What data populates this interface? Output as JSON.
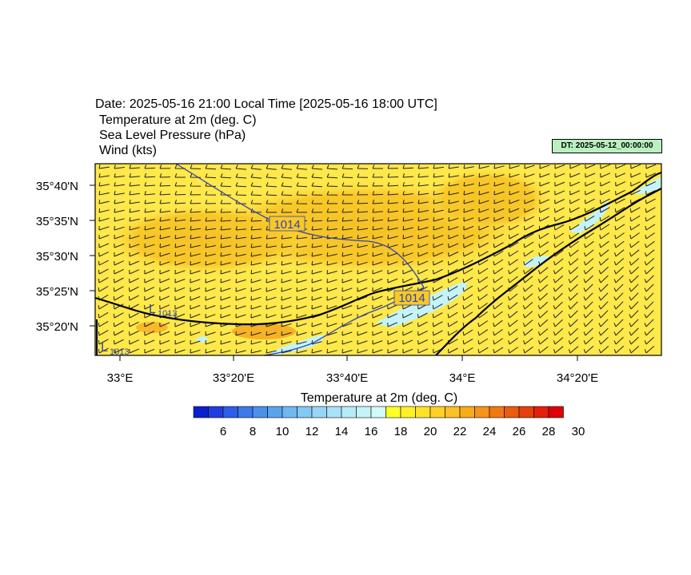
{
  "header": {
    "date_line": "Date: 2025-05-16  21:00 Local Time [2025-05-16  18:00 UTC]",
    "fields": [
      "Temperature at 2m   (deg. C)",
      "Sea Level Pressure   (hPa)",
      "Wind   (kts)"
    ],
    "dt_badge": "DT: 2025-05-12_00:00:00"
  },
  "map": {
    "lat_labels": [
      "35°40'N",
      "35°35'N",
      "35°30'N",
      "35°25'N",
      "35°20'N"
    ],
    "lon_labels": [
      "33°E",
      "33°20'E",
      "33°40'E",
      "34°E",
      "34°20'E"
    ],
    "isobar_labels": [
      "1014",
      "1014"
    ],
    "low_labels": [
      {
        "symbol": "L",
        "value": "1013"
      },
      {
        "symbol": "L",
        "value": "1013"
      }
    ],
    "colors": {
      "land": "#ffe34a",
      "land_warm": "#f8c628",
      "land_hot": "#f4a41c",
      "sea": "#fffa3c",
      "cool": "#c4f4f8",
      "isobar": "#3344aa",
      "coast": "#000000"
    }
  },
  "colorbar": {
    "title": "Temperature at 2m  (deg. C)",
    "tick_labels": [
      "6",
      "8",
      "10",
      "12",
      "14",
      "16",
      "18",
      "20",
      "22",
      "24",
      "26",
      "28",
      "30"
    ],
    "colors": [
      "#0a1fd0",
      "#1f3ee0",
      "#2e5ee8",
      "#3c7ae8",
      "#4c90ec",
      "#5aa4ee",
      "#70b8f0",
      "#84c8f4",
      "#98d6f6",
      "#a8e2f8",
      "#b6ecf8",
      "#c4f4f8",
      "#d2faf8",
      "#ffff28",
      "#fff028",
      "#ffe228",
      "#ffd028",
      "#fcc028",
      "#f8ac1c",
      "#f49418",
      "#ef7a14",
      "#ea5c10",
      "#e6400c",
      "#e4200a",
      "#e00008"
    ]
  }
}
